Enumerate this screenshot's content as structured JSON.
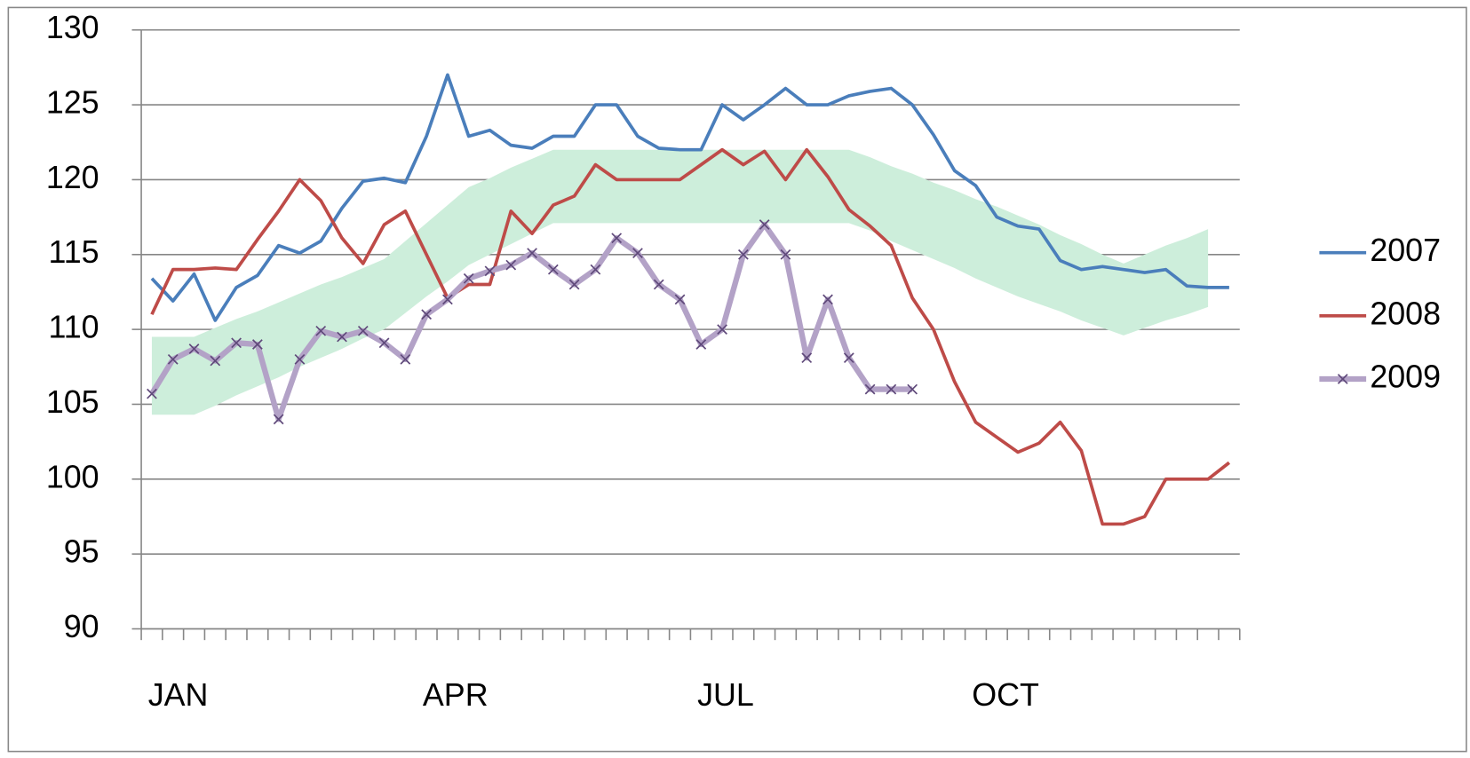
{
  "chart_data": {
    "type": "line",
    "categories": [
      "JAN",
      null,
      null,
      null,
      null,
      null,
      null,
      null,
      null,
      null,
      null,
      null,
      null,
      "APR",
      null,
      null,
      null,
      null,
      null,
      null,
      null,
      null,
      null,
      null,
      null,
      null,
      "JUL",
      null,
      null,
      null,
      null,
      null,
      null,
      null,
      null,
      null,
      null,
      null,
      null,
      "OCT",
      null,
      null,
      null,
      null,
      null,
      null,
      null,
      null,
      null,
      null,
      null,
      null
    ],
    "ylim": [
      90,
      130
    ],
    "yticks": [
      90,
      95,
      100,
      105,
      110,
      115,
      120,
      125,
      130
    ],
    "grid": true,
    "legend": "right",
    "band": {
      "color": "#cdeedb",
      "high": [
        109.5,
        109.5,
        109.5,
        110.1,
        110.7,
        111.2,
        111.8,
        112.4,
        113.0,
        113.5,
        114.1,
        114.7,
        115.9,
        117.1,
        118.3,
        119.5,
        120.1,
        120.8,
        121.4,
        122,
        122,
        122,
        122,
        122,
        122,
        122,
        122,
        122,
        122,
        122,
        122,
        122,
        122,
        122,
        121.5,
        120.9,
        120.4,
        119.8,
        119.3,
        118.7,
        118.2,
        117.6,
        117.0,
        116.3,
        115.7,
        115.0,
        114.4,
        115.0,
        115.6,
        116.1,
        116.7,
        null
      ],
      "low": [
        104.3,
        104.3,
        104.3,
        104.9,
        105.6,
        106.2,
        106.8,
        107.5,
        108.1,
        108.7,
        109.4,
        110.0,
        111.1,
        112.2,
        113.2,
        114.3,
        115.0,
        115.7,
        116.4,
        117.1,
        117.1,
        117.1,
        117.1,
        117.1,
        117.1,
        117.1,
        117.1,
        117.1,
        117.1,
        117.1,
        117.1,
        117.1,
        117.1,
        117.1,
        116.6,
        115.9,
        115.3,
        114.7,
        114.1,
        113.4,
        112.8,
        112.2,
        111.7,
        111.2,
        110.6,
        110.1,
        109.6,
        110.1,
        110.6,
        111.0,
        111.5,
        null
      ]
    },
    "series": [
      {
        "name": "2007",
        "color": "#4a7ebb",
        "width": 3.5,
        "values": [
          113.4,
          111.9,
          113.7,
          110.6,
          112.8,
          113.6,
          115.6,
          115.1,
          115.9,
          118.1,
          119.9,
          120.1,
          119.8,
          122.9,
          127,
          122.9,
          123.3,
          122.3,
          122.1,
          122.9,
          122.9,
          125,
          125,
          122.9,
          122.1,
          122,
          122,
          125,
          124,
          125,
          126.1,
          125,
          125,
          125.6,
          125.9,
          126.1,
          125,
          123,
          120.6,
          119.6,
          117.5,
          116.9,
          116.7,
          114.6,
          114,
          114.2,
          114,
          113.8,
          114,
          112.9,
          112.8,
          112.8
        ]
      },
      {
        "name": "2008",
        "color": "#be4b48",
        "width": 3.5,
        "values": [
          111,
          114,
          114,
          114.1,
          114,
          116,
          117.9,
          120,
          118.6,
          116.1,
          114.4,
          117,
          117.9,
          115,
          112.1,
          113,
          113,
          117.9,
          116.4,
          118.3,
          118.9,
          121,
          120,
          120,
          120,
          120,
          121,
          122,
          121,
          121.9,
          120,
          122,
          120.2,
          118,
          116.9,
          115.6,
          112.1,
          110,
          106.5,
          103.8,
          102.8,
          101.8,
          102.4,
          103.8,
          101.9,
          97,
          97,
          97.5,
          100,
          100,
          100,
          101.1
        ]
      },
      {
        "name": "2009",
        "color": "#b3a2c7",
        "width": 6,
        "marker": "x",
        "marker_color": "#5f497a",
        "values": [
          105.7,
          108,
          108.7,
          107.9,
          109.1,
          109,
          104,
          108,
          109.9,
          109.5,
          109.9,
          109.1,
          108,
          111,
          112,
          113.4,
          113.9,
          114.3,
          115.1,
          114,
          113,
          114,
          116.1,
          115.1,
          113,
          112,
          109,
          110,
          115,
          117,
          115,
          108.1,
          112,
          108.1,
          106,
          106,
          106,
          null,
          null,
          null,
          null,
          null,
          null,
          null,
          null,
          null,
          null,
          null,
          null,
          null,
          null,
          null
        ]
      }
    ]
  }
}
